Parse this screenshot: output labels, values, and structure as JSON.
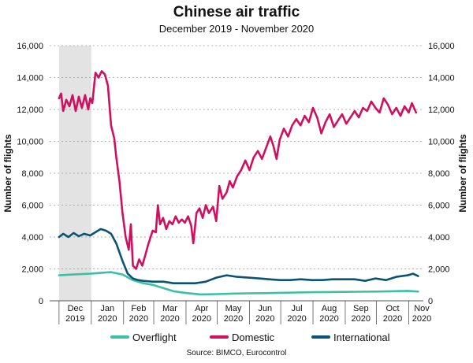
{
  "chart_data": {
    "type": "line",
    "title": "Chinese air traffic",
    "subtitle": "December 2019 - November 2020",
    "ylabel_left": "Number of flights",
    "ylabel_right": "Number of flights",
    "source": "Source: BIMCO, Eurocontrol",
    "ylim": [
      0,
      16000
    ],
    "y_ticks": [
      0,
      2000,
      4000,
      6000,
      8000,
      10000,
      12000,
      14000,
      16000
    ],
    "y_tick_labels": [
      "0",
      "2,000",
      "4,000",
      "6,000",
      "8,000",
      "10,000",
      "12,000",
      "14,000",
      "16,000"
    ],
    "x_ticks": [
      {
        "month": "Dec",
        "year": "2019"
      },
      {
        "month": "Jan",
        "year": "2020"
      },
      {
        "month": "Feb",
        "year": "2020"
      },
      {
        "month": "Mar",
        "year": "2020"
      },
      {
        "month": "Apr",
        "year": "2020"
      },
      {
        "month": "May",
        "year": "2020"
      },
      {
        "month": "Jun",
        "year": "2020"
      },
      {
        "month": "Jul",
        "year": "2020"
      },
      {
        "month": "Aug",
        "year": "2020"
      },
      {
        "month": "Sep",
        "year": "2020"
      },
      {
        "month": "Oct",
        "year": "2020"
      },
      {
        "month": "Nov",
        "year": "2020"
      }
    ],
    "grid": true,
    "shaded_range": [
      "2019-12-01",
      "2019-12-31"
    ],
    "legend_position": "bottom",
    "series": [
      {
        "name": "Overflight",
        "color": "#3dbfa6",
        "points": [
          [
            "2019-12-01",
            1600
          ],
          [
            "2019-12-15",
            1650
          ],
          [
            "2019-12-31",
            1700
          ],
          [
            "2020-01-10",
            1750
          ],
          [
            "2020-01-20",
            1800
          ],
          [
            "2020-01-31",
            1650
          ],
          [
            "2020-02-10",
            1300
          ],
          [
            "2020-02-20",
            1100
          ],
          [
            "2020-02-29",
            1000
          ],
          [
            "2020-03-10",
            800
          ],
          [
            "2020-03-20",
            600
          ],
          [
            "2020-03-31",
            500
          ],
          [
            "2020-04-15",
            400
          ],
          [
            "2020-04-30",
            420
          ],
          [
            "2020-05-15",
            450
          ],
          [
            "2020-05-31",
            470
          ],
          [
            "2020-06-15",
            480
          ],
          [
            "2020-06-30",
            500
          ],
          [
            "2020-07-15",
            520
          ],
          [
            "2020-07-31",
            540
          ],
          [
            "2020-08-15",
            550
          ],
          [
            "2020-08-31",
            560
          ],
          [
            "2020-09-15",
            570
          ],
          [
            "2020-09-30",
            580
          ],
          [
            "2020-10-15",
            600
          ],
          [
            "2020-10-31",
            620
          ],
          [
            "2020-11-10",
            580
          ]
        ]
      },
      {
        "name": "Domestic",
        "color": "#d0105e",
        "points": [
          [
            "2019-12-01",
            12700
          ],
          [
            "2019-12-03",
            13000
          ],
          [
            "2019-12-05",
            11900
          ],
          [
            "2019-12-08",
            12600
          ],
          [
            "2019-12-11",
            12200
          ],
          [
            "2019-12-14",
            12900
          ],
          [
            "2019-12-17",
            11900
          ],
          [
            "2019-12-20",
            12800
          ],
          [
            "2019-12-23",
            12100
          ],
          [
            "2019-12-26",
            12900
          ],
          [
            "2019-12-29",
            12000
          ],
          [
            "2019-12-31",
            12700
          ],
          [
            "2020-01-02",
            12400
          ],
          [
            "2020-01-05",
            14300
          ],
          [
            "2020-01-08",
            14000
          ],
          [
            "2020-01-11",
            14400
          ],
          [
            "2020-01-14",
            14200
          ],
          [
            "2020-01-17",
            13500
          ],
          [
            "2020-01-20",
            11000
          ],
          [
            "2020-01-23",
            10200
          ],
          [
            "2020-01-25",
            9000
          ],
          [
            "2020-01-28",
            7500
          ],
          [
            "2020-01-31",
            5500
          ],
          [
            "2020-02-03",
            4000
          ],
          [
            "2020-02-06",
            3200
          ],
          [
            "2020-02-08",
            4800
          ],
          [
            "2020-02-10",
            2200
          ],
          [
            "2020-02-13",
            2000
          ],
          [
            "2020-02-16",
            2600
          ],
          [
            "2020-02-19",
            2200
          ],
          [
            "2020-02-22",
            2900
          ],
          [
            "2020-02-25",
            3600
          ],
          [
            "2020-02-29",
            4400
          ],
          [
            "2020-03-03",
            4300
          ],
          [
            "2020-03-05",
            6000
          ],
          [
            "2020-03-07",
            4800
          ],
          [
            "2020-03-10",
            5200
          ],
          [
            "2020-03-13",
            4500
          ],
          [
            "2020-03-16",
            5000
          ],
          [
            "2020-03-19",
            4800
          ],
          [
            "2020-03-22",
            5300
          ],
          [
            "2020-03-25",
            4900
          ],
          [
            "2020-03-28",
            5100
          ],
          [
            "2020-03-31",
            4900
          ],
          [
            "2020-04-03",
            5300
          ],
          [
            "2020-04-06",
            4700
          ],
          [
            "2020-04-08",
            3600
          ],
          [
            "2020-04-11",
            5500
          ],
          [
            "2020-04-14",
            5800
          ],
          [
            "2020-04-17",
            5200
          ],
          [
            "2020-04-20",
            6000
          ],
          [
            "2020-04-23",
            5500
          ],
          [
            "2020-04-27",
            5900
          ],
          [
            "2020-04-30",
            5000
          ],
          [
            "2020-05-03",
            7200
          ],
          [
            "2020-05-06",
            6400
          ],
          [
            "2020-05-10",
            6800
          ],
          [
            "2020-05-13",
            7500
          ],
          [
            "2020-05-16",
            7100
          ],
          [
            "2020-05-20",
            7800
          ],
          [
            "2020-05-24",
            8200
          ],
          [
            "2020-05-28",
            8800
          ],
          [
            "2020-06-01",
            8200
          ],
          [
            "2020-06-05",
            9000
          ],
          [
            "2020-06-09",
            9400
          ],
          [
            "2020-06-13",
            8900
          ],
          [
            "2020-06-17",
            9600
          ],
          [
            "2020-06-21",
            10300
          ],
          [
            "2020-06-24",
            9700
          ],
          [
            "2020-06-27",
            8900
          ],
          [
            "2020-06-30",
            10100
          ],
          [
            "2020-07-04",
            10800
          ],
          [
            "2020-07-08",
            10300
          ],
          [
            "2020-07-12",
            11000
          ],
          [
            "2020-07-16",
            11400
          ],
          [
            "2020-07-20",
            11000
          ],
          [
            "2020-07-24",
            11600
          ],
          [
            "2020-07-28",
            11200
          ],
          [
            "2020-08-01",
            12100
          ],
          [
            "2020-08-05",
            11500
          ],
          [
            "2020-08-09",
            10500
          ],
          [
            "2020-08-13",
            11200
          ],
          [
            "2020-08-17",
            11700
          ],
          [
            "2020-08-21",
            10900
          ],
          [
            "2020-08-25",
            11300
          ],
          [
            "2020-08-29",
            11700
          ],
          [
            "2020-09-02",
            11100
          ],
          [
            "2020-09-06",
            11500
          ],
          [
            "2020-09-10",
            11900
          ],
          [
            "2020-09-14",
            11500
          ],
          [
            "2020-09-18",
            12100
          ],
          [
            "2020-09-22",
            11900
          ],
          [
            "2020-09-26",
            12500
          ],
          [
            "2020-09-30",
            12100
          ],
          [
            "2020-10-04",
            11800
          ],
          [
            "2020-10-08",
            12700
          ],
          [
            "2020-10-12",
            12300
          ],
          [
            "2020-10-16",
            11700
          ],
          [
            "2020-10-20",
            12100
          ],
          [
            "2020-10-24",
            11600
          ],
          [
            "2020-10-28",
            12200
          ],
          [
            "2020-11-01",
            11800
          ],
          [
            "2020-11-04",
            12400
          ],
          [
            "2020-11-08",
            11800
          ]
        ]
      },
      {
        "name": "International",
        "color": "#0b5374",
        "points": [
          [
            "2019-12-01",
            4000
          ],
          [
            "2019-12-05",
            4200
          ],
          [
            "2019-12-10",
            4000
          ],
          [
            "2019-12-15",
            4250
          ],
          [
            "2019-12-20",
            4050
          ],
          [
            "2019-12-25",
            4200
          ],
          [
            "2019-12-31",
            4100
          ],
          [
            "2020-01-05",
            4300
          ],
          [
            "2020-01-10",
            4500
          ],
          [
            "2020-01-15",
            4400
          ],
          [
            "2020-01-20",
            4200
          ],
          [
            "2020-01-25",
            3600
          ],
          [
            "2020-01-31",
            2500
          ],
          [
            "2020-02-05",
            1700
          ],
          [
            "2020-02-10",
            1400
          ],
          [
            "2020-02-15",
            1300
          ],
          [
            "2020-02-20",
            1250
          ],
          [
            "2020-02-29",
            1200
          ],
          [
            "2020-03-10",
            1200
          ],
          [
            "2020-03-20",
            1100
          ],
          [
            "2020-03-31",
            1100
          ],
          [
            "2020-04-10",
            1100
          ],
          [
            "2020-04-20",
            1200
          ],
          [
            "2020-04-30",
            1450
          ],
          [
            "2020-05-10",
            1600
          ],
          [
            "2020-05-20",
            1500
          ],
          [
            "2020-05-31",
            1450
          ],
          [
            "2020-06-10",
            1400
          ],
          [
            "2020-06-20",
            1350
          ],
          [
            "2020-06-30",
            1300
          ],
          [
            "2020-07-10",
            1300
          ],
          [
            "2020-07-20",
            1350
          ],
          [
            "2020-07-31",
            1300
          ],
          [
            "2020-08-10",
            1300
          ],
          [
            "2020-08-20",
            1350
          ],
          [
            "2020-08-31",
            1350
          ],
          [
            "2020-09-10",
            1350
          ],
          [
            "2020-09-20",
            1250
          ],
          [
            "2020-09-30",
            1400
          ],
          [
            "2020-10-10",
            1300
          ],
          [
            "2020-10-20",
            1500
          ],
          [
            "2020-10-31",
            1600
          ],
          [
            "2020-11-05",
            1700
          ],
          [
            "2020-11-10",
            1550
          ]
        ]
      }
    ]
  }
}
